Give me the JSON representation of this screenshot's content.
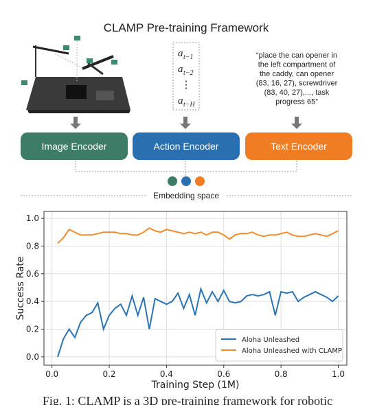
{
  "diagram": {
    "title": "CLAMP Pre-training Framework",
    "action_tokens": [
      {
        "base": "a",
        "sub": "t−1"
      },
      {
        "base": "a",
        "sub": "t−2"
      },
      {
        "base": "⋮"
      },
      {
        "base": "a",
        "sub": "t−H"
      }
    ],
    "text_prompt": [
      "“place the can opener in",
      "the left compartment of",
      "the caddy, can opener",
      "(83, 16, 27), screwdriver",
      "(83, 40, 27),..., task",
      "progress 65”"
    ],
    "encoders": [
      "Image Encoder",
      "Action Encoder",
      "Text Encoder"
    ],
    "embedding_space": "Embedding space"
  },
  "chart_data": {
    "type": "line",
    "xlabel": "Training Step (1M)",
    "ylabel": "Success Rate",
    "x": [
      0.02,
      0.04,
      0.06,
      0.08,
      0.1,
      0.12,
      0.14,
      0.16,
      0.18,
      0.2,
      0.22,
      0.24,
      0.26,
      0.28,
      0.3,
      0.32,
      0.34,
      0.36,
      0.38,
      0.4,
      0.42,
      0.44,
      0.46,
      0.48,
      0.5,
      0.52,
      0.54,
      0.56,
      0.58,
      0.6,
      0.62,
      0.64,
      0.66,
      0.68,
      0.7,
      0.72,
      0.74,
      0.76,
      0.78,
      0.8,
      0.82,
      0.84,
      0.86,
      0.88,
      0.9,
      0.92,
      0.94,
      0.96,
      0.98,
      1.0
    ],
    "series": [
      {
        "name": "Aloha Unleashed",
        "color": "#2a74b4",
        "values": [
          0,
          0.13,
          0.2,
          0.14,
          0.25,
          0.3,
          0.32,
          0.39,
          0.2,
          0.3,
          0.35,
          0.38,
          0.3,
          0.44,
          0.3,
          0.43,
          0.2,
          0.42,
          0.4,
          0.38,
          0.4,
          0.46,
          0.35,
          0.45,
          0.3,
          0.49,
          0.39,
          0.47,
          0.4,
          0.48,
          0.4,
          0.39,
          0.4,
          0.44,
          0.45,
          0.44,
          0.45,
          0.47,
          0.3,
          0.47,
          0.46,
          0.47,
          0.4,
          0.43,
          0.45,
          0.47,
          0.45,
          0.43,
          0.4,
          0.44
        ]
      },
      {
        "name": "Aloha Unleashed with CLAMP",
        "color": "#f28b2c",
        "values": [
          0.82,
          0.86,
          0.92,
          0.9,
          0.88,
          0.88,
          0.88,
          0.89,
          0.9,
          0.9,
          0.9,
          0.89,
          0.89,
          0.88,
          0.88,
          0.9,
          0.93,
          0.91,
          0.9,
          0.92,
          0.91,
          0.9,
          0.89,
          0.9,
          0.89,
          0.9,
          0.88,
          0.9,
          0.9,
          0.88,
          0.85,
          0.88,
          0.89,
          0.89,
          0.9,
          0.88,
          0.87,
          0.88,
          0.88,
          0.89,
          0.9,
          0.88,
          0.87,
          0.87,
          0.88,
          0.89,
          0.88,
          0.87,
          0.89,
          0.91
        ]
      }
    ],
    "xlim": [
      -0.028,
      1.03
    ],
    "ylim": [
      -0.06,
      1.05
    ],
    "xticks": [
      {
        "value": 0,
        "label": "0.0"
      },
      0.2,
      0.4,
      0.6,
      0.8,
      {
        "value": 1,
        "label": "1.0"
      }
    ],
    "yticks": [
      {
        "value": 0,
        "label": "0.0"
      },
      0.2,
      0.4,
      0.6,
      0.8,
      {
        "value": 1,
        "label": "1.0"
      }
    ],
    "grid": true,
    "legend": "lower right"
  },
  "caption": "Fig. 1: CLAMP is a 3D pre-training framework for robotic"
}
